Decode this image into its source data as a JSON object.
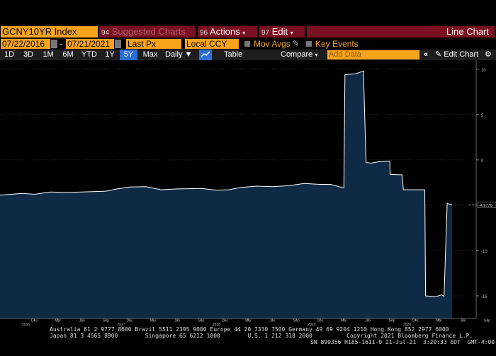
{
  "toolbar": {
    "ticker": "GCNY10YR Index",
    "suggested_num": "94",
    "suggested": "Suggested Charts",
    "actions_num": "96",
    "actions": "Actions",
    "edit_num": "97",
    "edit": "Edit",
    "title": "Line Chart"
  },
  "params": {
    "start_date": "07/22/2016",
    "separator": "-",
    "end_date": "07/21/2021",
    "price_field": "Last Px",
    "currency": "Local CCY",
    "mov_avgs": "Mov Avgs",
    "key_events": "Key Events"
  },
  "ranges": [
    "1D",
    "3D",
    "1M",
    "6M",
    "YTD",
    "1Y",
    "5Y",
    "Max"
  ],
  "selected_range": "5Y",
  "frequency": "Daily",
  "table_label": "Table",
  "compare_label": "Compare",
  "add_data_placeholder": "Add Data",
  "edit_chart_label": "Edit Chart",
  "colors": {
    "accent": "#f7a31c",
    "header": "#7a1020",
    "area_fill": "#0e2a45",
    "area_line": "#ffffff",
    "selected": "#2a6fd6"
  },
  "icons": [
    "calendar-icon",
    "pencil-icon",
    "line-style-icon",
    "collapse-icon",
    "pencil-icon",
    "gear-icon"
  ],
  "chart_data": {
    "type": "area",
    "title": "",
    "xlabel": "",
    "ylabel": "",
    "ylim": [
      -17.5,
      11
    ],
    "yticks": [
      10,
      5,
      0,
      -5,
      -10,
      -15
    ],
    "last_value_label": "-4.9776",
    "last_value": -4.9776,
    "x_tick_labels": [
      {
        "label": "Dec",
        "year": "2016"
      },
      {
        "label": "Mar",
        "year": ""
      },
      {
        "label": "Jun",
        "year": ""
      },
      {
        "label": "Sep",
        "year": ""
      },
      {
        "label": "Dec",
        "year": "2017"
      },
      {
        "label": "Mar",
        "year": ""
      },
      {
        "label": "Jun",
        "year": ""
      },
      {
        "label": "Sep",
        "year": ""
      },
      {
        "label": "Dec",
        "year": "2018"
      },
      {
        "label": "Mar",
        "year": ""
      },
      {
        "label": "Jun",
        "year": ""
      },
      {
        "label": "Sep",
        "year": ""
      },
      {
        "label": "Dec",
        "year": "2019"
      },
      {
        "label": "Mar",
        "year": ""
      },
      {
        "label": "Jun",
        "year": ""
      },
      {
        "label": "Sep",
        "year": ""
      },
      {
        "label": "Dec",
        "year": "2020"
      },
      {
        "label": "Mar",
        "year": ""
      },
      {
        "label": "Jun",
        "year": ""
      },
      {
        "label": "Sep",
        "year": ""
      },
      {
        "label": "Dec",
        "year": "2021"
      },
      {
        "label": "Mar",
        "year": ""
      },
      {
        "label": "Jun",
        "year": ""
      }
    ],
    "series": [
      {
        "points": [
          [
            "2016-07-22",
            -3.9
          ],
          [
            "2016-10-15",
            -3.7
          ],
          [
            "2016-12-01",
            -3.8
          ],
          [
            "2017-02-01",
            -3.55
          ],
          [
            "2017-04-01",
            -3.6
          ],
          [
            "2017-06-01",
            -3.55
          ],
          [
            "2017-09-01",
            -3.45
          ],
          [
            "2017-10-15",
            -3.2
          ],
          [
            "2017-12-01",
            -3.0
          ],
          [
            "2018-02-01",
            -2.95
          ],
          [
            "2018-04-01",
            -3.3
          ],
          [
            "2018-06-01",
            -3.2
          ],
          [
            "2018-09-01",
            -3.15
          ],
          [
            "2018-11-01",
            -3.35
          ],
          [
            "2018-12-15",
            -3.3
          ],
          [
            "2019-02-01",
            -3.05
          ],
          [
            "2019-04-01",
            -2.9
          ],
          [
            "2019-06-01",
            -2.95
          ],
          [
            "2019-08-01",
            -2.85
          ],
          [
            "2019-10-01",
            -2.6
          ],
          [
            "2019-12-01",
            -2.7
          ],
          [
            "2020-01-10",
            -2.7
          ],
          [
            "2020-03-01",
            -3.1
          ],
          [
            "2020-03-05",
            9.4
          ],
          [
            "2020-04-15",
            9.5
          ],
          [
            "2020-05-15",
            9.8
          ],
          [
            "2020-05-25",
            -0.3
          ],
          [
            "2020-06-15",
            -0.35
          ],
          [
            "2020-07-15",
            -0.2
          ],
          [
            "2020-08-24",
            -0.15
          ],
          [
            "2020-08-25",
            -1.6
          ],
          [
            "2020-10-10",
            -1.65
          ],
          [
            "2020-10-15",
            -3.3
          ],
          [
            "2020-12-01",
            -3.3
          ],
          [
            "2021-01-05",
            -3.3
          ],
          [
            "2021-01-08",
            -15.0
          ],
          [
            "2021-02-15",
            -15.1
          ],
          [
            "2021-03-10",
            -14.9
          ],
          [
            "2021-03-20",
            -15.05
          ],
          [
            "2021-04-01",
            -4.8
          ],
          [
            "2021-04-20",
            -4.9776
          ]
        ]
      }
    ]
  },
  "footer": {
    "line1": "Australia 61 2 9777 8600 Brazil 5511 2395 9000 Europe 44 20 7330 7500 Germany 49 69 9204 1210 Hong Kong 852 2977 6000",
    "line2": "Japan 81 3 4565 8900        Singapore 65 6212 1000        U.S. 1 212 318 2000          Copyright 2021 Bloomberg Finance L.P.",
    "line3": "SN 899356 H185-1611-0 21-Jul-21  3:20:33 EDT  GMT-4:00"
  }
}
